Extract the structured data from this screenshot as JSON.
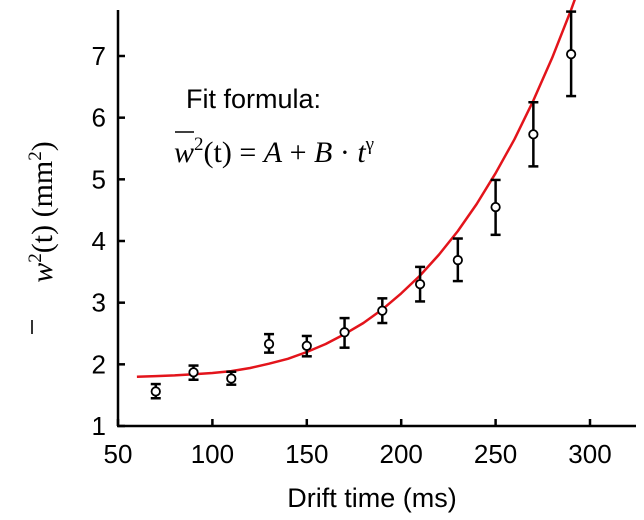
{
  "chart_data": {
    "type": "scatter",
    "xlabel": "Drift time (ms)",
    "ylabel": {
      "symbol": "w",
      "exponent": "2",
      "argument": "(t)",
      "unit_open": " (mm",
      "unit_exp": "2",
      "unit_close": ")"
    },
    "xlim": [
      50,
      325
    ],
    "ylim": [
      1,
      7.8
    ],
    "x_ticks": [
      50,
      100,
      150,
      200,
      250,
      300
    ],
    "y_ticks": [
      1,
      2,
      3,
      4,
      5,
      6,
      7
    ],
    "x_tick_labels": [
      "50",
      "100",
      "150",
      "200",
      "250",
      "300"
    ],
    "y_tick_labels": [
      "1",
      "2",
      "3",
      "4",
      "5",
      "6",
      "7"
    ],
    "grid": false,
    "legend": "none",
    "series": [
      {
        "type": "scatter_errorbar",
        "color": "#000000",
        "marker": "open-circle",
        "x": [
          70,
          90,
          110,
          130,
          150,
          170,
          190,
          210,
          230,
          250,
          270,
          290
        ],
        "y": [
          1.56,
          1.87,
          1.77,
          2.33,
          2.3,
          2.52,
          2.87,
          3.3,
          3.69,
          4.55,
          5.73,
          7.03
        ],
        "err_low": [
          1.45,
          1.75,
          1.67,
          2.19,
          2.13,
          2.27,
          2.67,
          3.02,
          3.35,
          4.1,
          5.21,
          6.35
        ],
        "err_high": [
          1.68,
          1.98,
          1.88,
          2.49,
          2.46,
          2.75,
          3.07,
          3.58,
          4.04,
          4.99,
          6.25,
          7.72
        ]
      },
      {
        "type": "fit_line",
        "color": "#e3141b",
        "x_range": [
          60,
          300
        ],
        "x": [
          60,
          70,
          80,
          90,
          100,
          110,
          120,
          130,
          140,
          150,
          160,
          170,
          180,
          190,
          200,
          210,
          220,
          230,
          240,
          250,
          260,
          270,
          280,
          290,
          300
        ],
        "y": [
          1.8,
          1.81,
          1.82,
          1.84,
          1.86,
          1.89,
          1.94,
          2.01,
          2.09,
          2.2,
          2.33,
          2.49,
          2.67,
          2.89,
          3.15,
          3.44,
          3.78,
          4.16,
          4.6,
          5.1,
          5.65,
          6.28,
          6.97,
          7.75,
          8.6
        ]
      }
    ],
    "annotation": {
      "label": "Fit formula:",
      "formula_w": "w",
      "formula_w_exp": "2",
      "formula_paren": "(t) = ",
      "formula_A": "A",
      "formula_plus": " + ",
      "formula_B": "B",
      "formula_dot": " · ",
      "formula_t": "t",
      "formula_gamma": "γ"
    }
  }
}
